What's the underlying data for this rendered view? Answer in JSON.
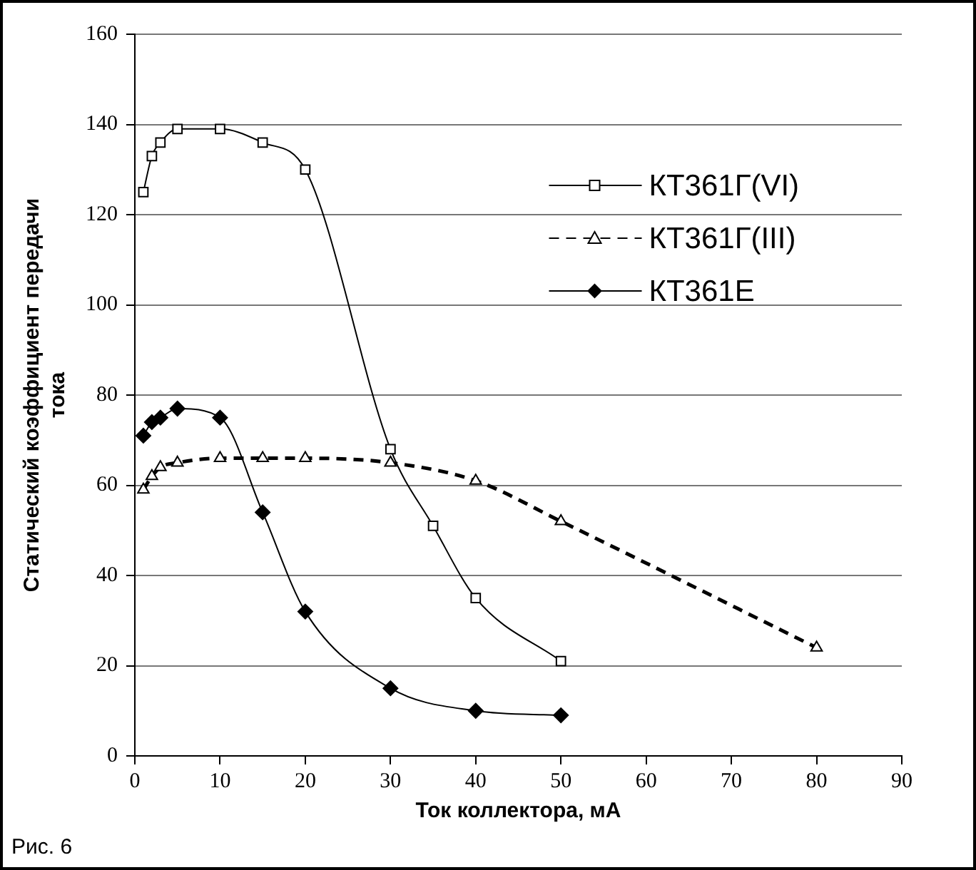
{
  "chart_data": {
    "type": "line",
    "xlabel": "Ток коллектора, мА",
    "ylabel": "Статический коэффициент передачи тока",
    "annotations": [
      "Рис. 6"
    ],
    "xlim": [
      0,
      90
    ],
    "xticks": [
      0,
      10,
      20,
      30,
      40,
      50,
      60,
      70,
      80,
      90
    ],
    "ylim": [
      0,
      160
    ],
    "yticks": [
      0,
      20,
      40,
      60,
      80,
      100,
      120,
      140,
      160
    ],
    "grid": "y",
    "legend": "top right",
    "series": [
      {
        "name": "КТ361Г(VI)",
        "color": "#000000",
        "marker": "square",
        "line_style": "solid",
        "x": [
          1,
          2,
          3,
          5,
          10,
          15,
          20,
          30,
          35,
          40,
          50
        ],
        "values": [
          125,
          133,
          136,
          139,
          139,
          136,
          130,
          68,
          51,
          35,
          21
        ]
      },
      {
        "name": "КТ361Г(III)",
        "color": "#000000",
        "marker": "triangle",
        "line_style": "dashed",
        "x": [
          1,
          2,
          3,
          5,
          10,
          15,
          20,
          30,
          40,
          50,
          80
        ],
        "values": [
          59,
          62,
          64,
          65,
          66,
          66,
          66,
          65,
          61,
          52,
          24
        ]
      },
      {
        "name": "КТ361Е",
        "color": "#000000",
        "marker": "diamond",
        "line_style": "solid",
        "x": [
          1,
          2,
          3,
          5,
          10,
          15,
          20,
          30,
          40,
          50
        ],
        "values": [
          71,
          74,
          75,
          77,
          75,
          54,
          32,
          15,
          10,
          9
        ]
      }
    ]
  }
}
